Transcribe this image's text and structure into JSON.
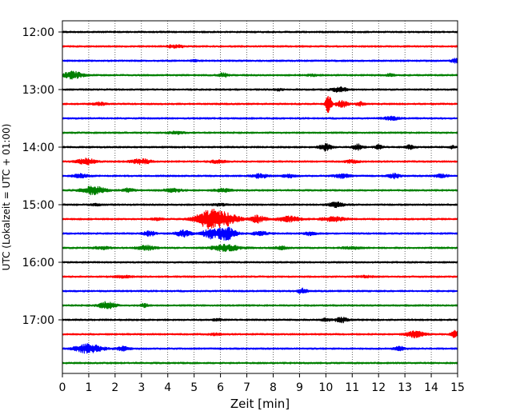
{
  "chart_data": {
    "type": "line",
    "title": "",
    "xlabel": "Zeit  [min]",
    "ylabel": "UTC (Lokalzeit = UTC + 01:00)",
    "xlim": [
      0,
      15
    ],
    "x_ticks": [
      "0",
      "1",
      "2",
      "3",
      "4",
      "5",
      "6",
      "7",
      "8",
      "9",
      "10",
      "11",
      "12",
      "13",
      "14",
      "15"
    ],
    "y_tick_labels": [
      "12:00",
      "13:00",
      "14:00",
      "15:00",
      "16:00",
      "17:00"
    ],
    "trace_interval_minutes": 15,
    "grid": {
      "x": "dotted",
      "y": "none"
    },
    "colors": [
      "#000000",
      "#ff0000",
      "#0000ff",
      "#008000"
    ],
    "series": [
      {
        "start": "12:00",
        "color": "#000000",
        "events": []
      },
      {
        "start": "12:15",
        "color": "#ff0000",
        "events": [
          [
            4.2,
            0.25,
            0.6
          ],
          [
            4.5,
            0.15,
            0.4
          ]
        ]
      },
      {
        "start": "12:30",
        "color": "#0000ff",
        "events": [
          [
            14.9,
            0.2,
            0.8
          ],
          [
            5.0,
            0.15,
            0.3
          ]
        ]
      },
      {
        "start": "12:45",
        "color": "#008000",
        "events": [
          [
            0.4,
            0.5,
            1.4
          ],
          [
            6.1,
            0.25,
            0.8
          ],
          [
            12.4,
            0.25,
            0.4
          ],
          [
            9.5,
            0.3,
            0.3
          ]
        ]
      },
      {
        "start": "13:00",
        "color": "#000000",
        "events": [
          [
            10.5,
            0.4,
            0.9
          ],
          [
            8.2,
            0.2,
            0.4
          ]
        ]
      },
      {
        "start": "13:15",
        "color": "#ff0000",
        "events": [
          [
            1.4,
            0.3,
            0.6
          ],
          [
            10.1,
            0.15,
            4.0
          ],
          [
            10.6,
            0.3,
            1.3
          ],
          [
            11.3,
            0.2,
            0.8
          ]
        ]
      },
      {
        "start": "13:30",
        "color": "#0000ff",
        "events": [
          [
            12.5,
            0.4,
            0.6
          ]
        ]
      },
      {
        "start": "13:45",
        "color": "#008000",
        "events": [
          [
            4.3,
            0.4,
            0.6
          ]
        ]
      },
      {
        "start": "14:00",
        "color": "#000000",
        "events": [
          [
            10.0,
            0.3,
            1.5
          ],
          [
            11.2,
            0.25,
            1.1
          ],
          [
            12.0,
            0.2,
            0.8
          ],
          [
            13.2,
            0.2,
            0.8
          ],
          [
            14.8,
            0.1,
            0.8
          ]
        ]
      },
      {
        "start": "14:15",
        "color": "#ff0000",
        "events": [
          [
            0.9,
            0.5,
            1.1
          ],
          [
            3.0,
            0.5,
            1.0
          ],
          [
            5.9,
            0.4,
            0.6
          ],
          [
            11.0,
            0.4,
            0.5
          ]
        ]
      },
      {
        "start": "14:30",
        "color": "#0000ff",
        "events": [
          [
            0.7,
            0.4,
            0.7
          ],
          [
            7.5,
            0.4,
            0.8
          ],
          [
            8.6,
            0.3,
            0.6
          ],
          [
            10.6,
            0.4,
            0.8
          ],
          [
            12.6,
            0.3,
            0.9
          ],
          [
            14.4,
            0.3,
            0.7
          ]
        ]
      },
      {
        "start": "14:45",
        "color": "#008000",
        "events": [
          [
            1.2,
            0.6,
            1.7
          ],
          [
            2.5,
            0.3,
            0.7
          ],
          [
            4.2,
            0.5,
            0.6
          ],
          [
            6.1,
            0.4,
            0.6
          ]
        ]
      },
      {
        "start": "15:00",
        "color": "#000000",
        "events": [
          [
            10.4,
            0.4,
            1.0
          ],
          [
            6.0,
            0.4,
            0.4
          ],
          [
            1.3,
            0.3,
            0.3
          ]
        ]
      },
      {
        "start": "15:15",
        "color": "#ff0000",
        "events": [
          [
            5.6,
            0.7,
            3.8
          ],
          [
            6.3,
            0.6,
            2.0
          ],
          [
            7.4,
            0.4,
            1.4
          ],
          [
            8.6,
            0.6,
            1.0
          ],
          [
            10.3,
            0.6,
            0.8
          ],
          [
            3.6,
            0.3,
            0.4
          ]
        ]
      },
      {
        "start": "15:30",
        "color": "#0000ff",
        "events": [
          [
            3.3,
            0.3,
            1.0
          ],
          [
            4.6,
            0.4,
            1.2
          ],
          [
            5.6,
            0.4,
            1.8
          ],
          [
            6.2,
            0.5,
            2.6
          ],
          [
            7.5,
            0.4,
            0.7
          ],
          [
            9.4,
            0.3,
            0.6
          ]
        ]
      },
      {
        "start": "15:45",
        "color": "#008000",
        "events": [
          [
            6.2,
            0.7,
            1.3
          ],
          [
            3.2,
            0.5,
            0.8
          ],
          [
            1.5,
            0.4,
            0.5
          ],
          [
            8.3,
            0.3,
            0.6
          ],
          [
            11.0,
            0.5,
            0.4
          ]
        ]
      },
      {
        "start": "16:00",
        "color": "#000000",
        "events": []
      },
      {
        "start": "16:15",
        "color": "#ff0000",
        "events": [
          [
            2.3,
            0.4,
            0.4
          ],
          [
            11.5,
            0.4,
            0.3
          ]
        ]
      },
      {
        "start": "16:30",
        "color": "#0000ff",
        "events": [
          [
            9.1,
            0.25,
            1.0
          ]
        ]
      },
      {
        "start": "16:45",
        "color": "#008000",
        "events": [
          [
            1.7,
            0.4,
            1.6
          ],
          [
            3.1,
            0.2,
            0.7
          ]
        ]
      },
      {
        "start": "17:00",
        "color": "#000000",
        "events": [
          [
            10.6,
            0.3,
            1.1
          ],
          [
            10.0,
            0.2,
            0.6
          ],
          [
            5.9,
            0.2,
            0.5
          ]
        ]
      },
      {
        "start": "17:15",
        "color": "#ff0000",
        "events": [
          [
            13.4,
            0.45,
            1.3
          ],
          [
            14.9,
            0.2,
            1.3
          ],
          [
            5.8,
            0.3,
            0.4
          ]
        ]
      },
      {
        "start": "17:30",
        "color": "#0000ff",
        "events": [
          [
            1.0,
            0.7,
            1.8
          ],
          [
            2.3,
            0.3,
            0.8
          ],
          [
            12.8,
            0.3,
            0.7
          ]
        ]
      },
      {
        "start": "17:45",
        "color": "#008000",
        "events": []
      }
    ]
  }
}
